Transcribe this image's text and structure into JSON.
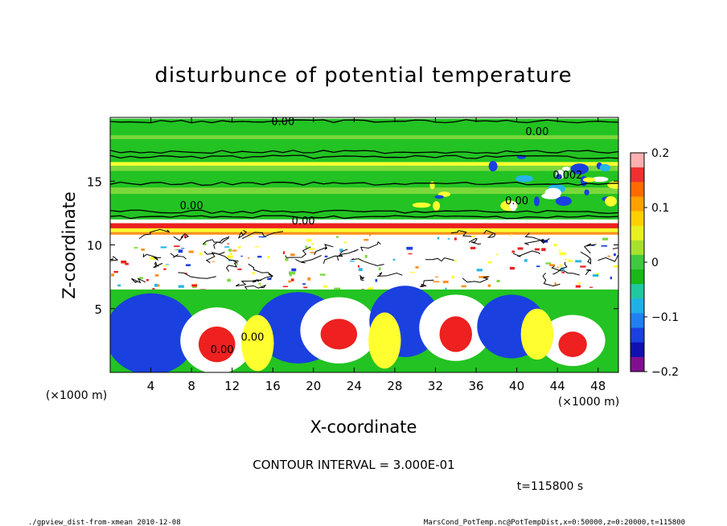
{
  "chart_data": {
    "type": "heatmap",
    "title": "disturbunce of potential temperature",
    "xlabel": "X-coordinate",
    "ylabel": "Z-coordinate",
    "x_unit": "(×1000 m)",
    "y_unit": "(×1000 m)",
    "xlim": [
      0,
      50
    ],
    "ylim": [
      0,
      20
    ],
    "x_ticks": [
      4,
      8,
      12,
      16,
      20,
      24,
      28,
      32,
      36,
      40,
      44,
      48
    ],
    "y_ticks": [
      5,
      10,
      15
    ],
    "colorbar": {
      "range": [
        -0.2,
        0.2
      ],
      "tick_values": [
        0.2,
        0.1,
        0,
        -0.1,
        -0.2
      ],
      "tick_labels": [
        "0.2",
        "0.1",
        "0",
        "−0.1",
        "−0.2"
      ]
    },
    "contour_labels": [
      "0.00",
      "0.00",
      "0.002",
      "0.00",
      "0.00",
      "0.00",
      "0.00",
      "0.00"
    ],
    "contour_interval": "CONTOUR INTERVAL = 3.000E-01",
    "time": "t=115800 s"
  },
  "footer": {
    "left": "./gpview_dist-from-xmean  2010-12-08",
    "right": "MarsCond_PotTemp.nc@PotTempDist,x=0:50000,z=0:20000,t=115800"
  },
  "colors": {
    "green": "#22c322",
    "lime": "#7bd83a",
    "yellow": "#ffff30",
    "red": "#ee2020",
    "blue": "#1a40e0",
    "cyan": "#27b5e8",
    "navy": "#10109a"
  }
}
